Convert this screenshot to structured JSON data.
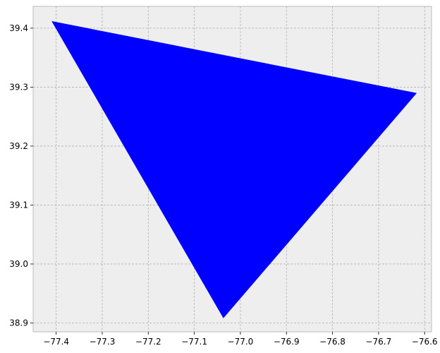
{
  "chart_data": {
    "type": "area",
    "title": "",
    "xlabel": "",
    "ylabel": "",
    "xlim": [
      -77.45,
      -76.585
    ],
    "ylim": [
      38.885,
      39.437
    ],
    "grid": true,
    "x_ticks": [
      -77.4,
      -77.3,
      -77.2,
      -77.1,
      -77.0,
      -76.9,
      -76.8,
      -76.7,
      -76.6
    ],
    "x_tick_labels": [
      "−77.4",
      "−77.3",
      "−77.2",
      "−77.1",
      "−77.0",
      "−76.9",
      "−76.8",
      "−76.7",
      "−76.6"
    ],
    "y_ticks": [
      38.9,
      39.0,
      39.1,
      39.2,
      39.3,
      39.4
    ],
    "y_tick_labels": [
      "38.9",
      "39.0",
      "39.1",
      "39.2",
      "39.3",
      "39.4"
    ],
    "series": [
      {
        "type": "polygon",
        "points": [
          {
            "x": -77.41,
            "y": 39.412
          },
          {
            "x": -76.617,
            "y": 39.29
          },
          {
            "x": -77.037,
            "y": 38.908
          }
        ]
      }
    ],
    "colors": {
      "fill": "#0000ff",
      "axes_background": "#eeeeee",
      "grid": "#b2b2b2",
      "spine": "#bcbcbc"
    }
  }
}
